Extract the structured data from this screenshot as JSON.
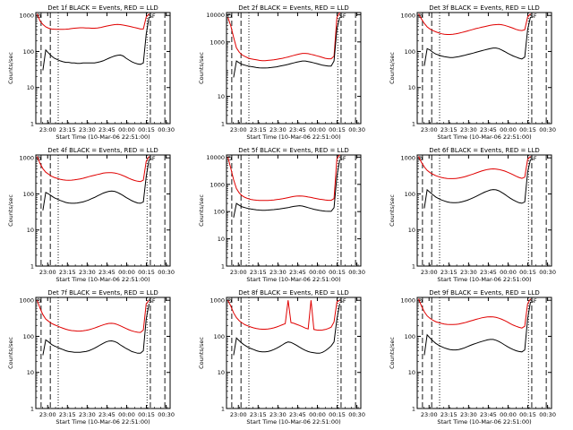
{
  "figure": {
    "background": "#ffffff",
    "axis_color": "#000000"
  },
  "chart_data": [
    {
      "type": "line",
      "title": "Det 1f BLACK = Events, RED = LLD",
      "xlabel": "Start Time (10-Mar-06 22:51:00)",
      "ylabel": "Counts/sec",
      "x_ticks": [
        "23:00",
        "23:15",
        "23:30",
        "23:45",
        "00:00",
        "00:15",
        "00:30"
      ],
      "y_ticks": [
        "1",
        "10",
        "100",
        "1000"
      ],
      "ylim": [
        1,
        1200
      ],
      "yscale": "log",
      "grid": false,
      "markers": [
        "D",
        "SF"
      ],
      "series": [
        {
          "color": "#e00000",
          "values": [
            1100,
            700,
            560,
            480,
            440,
            420,
            415,
            410,
            410,
            412,
            415,
            420,
            430,
            440,
            450,
            455,
            455,
            450,
            445,
            440,
            440,
            445,
            460,
            480,
            500,
            520,
            540,
            555,
            560,
            555,
            540,
            520,
            500,
            480,
            460,
            440,
            420,
            420,
            900,
            1100
          ]
        },
        {
          "color": "#000000",
          "values": [
            null,
            null,
            30,
            110,
            90,
            75,
            65,
            60,
            55,
            52,
            50,
            50,
            48,
            48,
            47,
            47,
            48,
            48,
            48,
            48,
            48,
            50,
            52,
            55,
            60,
            65,
            70,
            75,
            78,
            80,
            75,
            65,
            58,
            52,
            48,
            45,
            44,
            48,
            300,
            900
          ]
        }
      ]
    },
    {
      "type": "line",
      "title": "Det 2f BLACK = Events, RED = LLD",
      "xlabel": "Start Time (10-Mar-06 22:51:00)",
      "ylabel": "Counts/sec",
      "x_ticks": [
        "23:00",
        "23:15",
        "23:30",
        "23:45",
        "00:00",
        "00:15",
        "00:30"
      ],
      "y_ticks": [
        "1",
        "10",
        "1000",
        "10000"
      ],
      "ylim": [
        1,
        12000
      ],
      "yscale": "log",
      "grid": false,
      "markers": [
        "D",
        "SF"
      ],
      "series": [
        {
          "color": "#e00000",
          "values": [
            8000,
            4000,
            1500,
            600,
            420,
            330,
            290,
            260,
            240,
            230,
            220,
            210,
            205,
            205,
            210,
            215,
            220,
            230,
            240,
            250,
            265,
            280,
            300,
            320,
            340,
            360,
            380,
            380,
            370,
            350,
            330,
            310,
            290,
            270,
            250,
            240,
            240,
            300,
            8000,
            12000
          ]
        },
        {
          "color": "#000000",
          "values": [
            null,
            null,
            50,
            200,
            170,
            150,
            140,
            130,
            125,
            120,
            115,
            112,
            110,
            110,
            112,
            115,
            118,
            122,
            128,
            135,
            142,
            150,
            160,
            170,
            180,
            190,
            200,
            200,
            190,
            180,
            170,
            160,
            150,
            140,
            135,
            130,
            130,
            200,
            3000,
            8000
          ]
        }
      ]
    },
    {
      "type": "line",
      "title": "Det 3f BLACK = Events, RED = LLD",
      "xlabel": "Start Time (10-Mar-06 22:51:00)",
      "ylabel": "Counts/sec",
      "x_ticks": [
        "23:00",
        "23:15",
        "23:30",
        "23:45",
        "00:00",
        "00:15",
        "00:30"
      ],
      "y_ticks": [
        "1",
        "10",
        "100",
        "1000"
      ],
      "ylim": [
        1,
        1200
      ],
      "yscale": "log",
      "grid": false,
      "markers": [
        "D",
        "SF"
      ],
      "series": [
        {
          "color": "#e00000",
          "values": [
            1100,
            800,
            600,
            480,
            420,
            380,
            350,
            330,
            310,
            300,
            295,
            295,
            300,
            310,
            320,
            335,
            350,
            370,
            390,
            410,
            430,
            450,
            470,
            490,
            510,
            530,
            545,
            555,
            560,
            550,
            530,
            500,
            470,
            440,
            410,
            390,
            380,
            400,
            900,
            1100
          ]
        },
        {
          "color": "#000000",
          "values": [
            null,
            null,
            40,
            120,
            110,
            95,
            85,
            80,
            75,
            72,
            70,
            68,
            68,
            70,
            72,
            75,
            78,
            82,
            86,
            90,
            95,
            100,
            105,
            110,
            115,
            120,
            125,
            125,
            120,
            110,
            100,
            90,
            82,
            75,
            70,
            65,
            62,
            70,
            400,
            900
          ]
        }
      ]
    },
    {
      "type": "line",
      "title": "Det 4f BLACK = Events, RED = LLD",
      "xlabel": "Start Time (10-Mar-06 22:51:00)",
      "ylabel": "Counts/sec",
      "x_ticks": [
        "23:00",
        "23:15",
        "23:30",
        "23:45",
        "00:00",
        "00:15",
        "00:30"
      ],
      "y_ticks": [
        "1",
        "10",
        "100",
        "1000"
      ],
      "ylim": [
        1,
        1200
      ],
      "yscale": "log",
      "grid": false,
      "markers": [
        "D",
        "SF"
      ],
      "series": [
        {
          "color": "#e00000",
          "values": [
            1100,
            700,
            500,
            400,
            350,
            310,
            285,
            270,
            255,
            245,
            240,
            238,
            240,
            245,
            252,
            260,
            272,
            285,
            300,
            315,
            330,
            345,
            360,
            375,
            385,
            390,
            390,
            380,
            365,
            345,
            320,
            295,
            270,
            250,
            235,
            225,
            220,
            240,
            800,
            1100
          ]
        },
        {
          "color": "#000000",
          "values": [
            null,
            null,
            35,
            110,
            100,
            88,
            78,
            72,
            66,
            62,
            58,
            56,
            55,
            55,
            56,
            58,
            60,
            64,
            68,
            74,
            80,
            88,
            96,
            105,
            112,
            118,
            120,
            118,
            110,
            100,
            90,
            80,
            72,
            65,
            60,
            56,
            55,
            60,
            300,
            900
          ]
        }
      ]
    },
    {
      "type": "line",
      "title": "Det 5f BLACK = Events, RED = LLD",
      "xlabel": "Start Time (10-Mar-06 22:51:00)",
      "ylabel": "Counts/sec",
      "x_ticks": [
        "23:00",
        "23:15",
        "23:30",
        "23:45",
        "00:00",
        "00:15",
        "00:30"
      ],
      "y_ticks": [
        "1",
        "10",
        "100",
        "1000",
        "10000"
      ],
      "ylim": [
        1,
        12000
      ],
      "yscale": "log",
      "grid": false,
      "markers": [
        "D",
        "SF"
      ],
      "series": [
        {
          "color": "#e00000",
          "values": [
            10000,
            4000,
            1500,
            700,
            480,
            380,
            330,
            300,
            280,
            270,
            262,
            258,
            255,
            255,
            258,
            262,
            268,
            275,
            285,
            295,
            310,
            325,
            345,
            360,
            370,
            375,
            370,
            360,
            345,
            330,
            315,
            300,
            285,
            275,
            265,
            260,
            260,
            300,
            9000,
            12000
          ]
        },
        {
          "color": "#000000",
          "values": [
            null,
            null,
            60,
            200,
            170,
            150,
            140,
            130,
            125,
            120,
            116,
            114,
            112,
            112,
            114,
            116,
            118,
            122,
            126,
            130,
            135,
            140,
            148,
            155,
            160,
            165,
            160,
            150,
            140,
            130,
            122,
            116,
            110,
            106,
            104,
            102,
            102,
            140,
            2000,
            8000
          ]
        }
      ]
    },
    {
      "type": "line",
      "title": "Det 6f BLACK = Events, RED = LLD",
      "xlabel": "Start Time (10-Mar-06 22:51:00)",
      "ylabel": "Counts/sec",
      "x_ticks": [
        "23:00",
        "23:15",
        "23:30",
        "23:45",
        "00:00",
        "00:15",
        "00:30"
      ],
      "y_ticks": [
        "1",
        "10",
        "100",
        "1000"
      ],
      "ylim": [
        1,
        1200
      ],
      "yscale": "log",
      "grid": false,
      "markers": [
        "D",
        "SF"
      ],
      "series": [
        {
          "color": "#e00000",
          "values": [
            1100,
            750,
            560,
            450,
            390,
            350,
            320,
            300,
            285,
            275,
            268,
            265,
            265,
            268,
            275,
            285,
            298,
            315,
            335,
            355,
            380,
            405,
            430,
            455,
            475,
            490,
            495,
            490,
            475,
            455,
            430,
            400,
            370,
            340,
            310,
            285,
            270,
            290,
            900,
            1100
          ]
        },
        {
          "color": "#000000",
          "values": [
            null,
            null,
            40,
            130,
            110,
            95,
            82,
            74,
            68,
            64,
            60,
            58,
            57,
            57,
            58,
            60,
            63,
            67,
            72,
            78,
            85,
            93,
            102,
            112,
            120,
            128,
            132,
            130,
            122,
            110,
            98,
            86,
            76,
            68,
            62,
            57,
            55,
            60,
            400,
            900
          ]
        }
      ]
    },
    {
      "type": "line",
      "title": "Det 7f BLACK = Events, RED = LLD",
      "xlabel": "Start Time (10-Mar-06 22:51:00)",
      "ylabel": "Counts/sec",
      "x_ticks": [
        "23:00",
        "23:15",
        "23:30",
        "23:45",
        "00:00",
        "00:15",
        "00:30"
      ],
      "y_ticks": [
        "1",
        "10",
        "100",
        "1000"
      ],
      "ylim": [
        1,
        1200
      ],
      "yscale": "log",
      "grid": false,
      "markers": [
        "D",
        "SF"
      ],
      "series": [
        {
          "color": "#e00000",
          "values": [
            1000,
            600,
            400,
            300,
            260,
            230,
            210,
            195,
            180,
            168,
            158,
            150,
            145,
            142,
            140,
            140,
            142,
            146,
            152,
            160,
            170,
            182,
            195,
            208,
            220,
            228,
            230,
            225,
            212,
            196,
            180,
            165,
            152,
            142,
            135,
            130,
            128,
            150,
            800,
            1000
          ]
        },
        {
          "color": "#000000",
          "values": [
            null,
            null,
            30,
            80,
            70,
            60,
            54,
            50,
            46,
            43,
            40,
            38,
            37,
            36,
            36,
            36,
            37,
            38,
            40,
            43,
            47,
            52,
            58,
            64,
            70,
            74,
            75,
            72,
            66,
            58,
            52,
            46,
            42,
            38,
            36,
            34,
            34,
            40,
            300,
            800
          ]
        }
      ]
    },
    {
      "type": "line",
      "title": "Det 8f BLACK = Events, RED = LLD",
      "xlabel": "Start Time (10-Mar-06 22:51:00)",
      "ylabel": "Counts/sec",
      "x_ticks": [
        "23:00",
        "23:15",
        "23:30",
        "23:45",
        "00:00",
        "00:15",
        "00:30"
      ],
      "y_ticks": [
        "1",
        "10",
        "100",
        "1000"
      ],
      "ylim": [
        1,
        1200
      ],
      "yscale": "log",
      "grid": false,
      "markers": [
        "D",
        "SF"
      ],
      "series": [
        {
          "color": "#e00000",
          "values": [
            1000,
            700,
            450,
            330,
            270,
            235,
            210,
            195,
            182,
            172,
            165,
            160,
            158,
            158,
            160,
            165,
            172,
            182,
            195,
            210,
            225,
            1000,
            240,
            230,
            215,
            200,
            185,
            170,
            160,
            1000,
            155,
            150,
            148,
            150,
            155,
            165,
            180,
            250,
            900,
            1000
          ]
        },
        {
          "color": "#000000",
          "values": [
            null,
            null,
            30,
            90,
            75,
            64,
            56,
            50,
            46,
            43,
            40,
            38,
            37,
            37,
            38,
            40,
            43,
            47,
            52,
            58,
            65,
            70,
            68,
            62,
            56,
            50,
            45,
            41,
            38,
            36,
            35,
            34,
            34,
            36,
            40,
            46,
            54,
            70,
            300,
            800
          ]
        }
      ]
    },
    {
      "type": "line",
      "title": "Det 9f BLACK = Events, RED = LLD",
      "xlabel": "Start Time (10-Mar-06 22:51:00)",
      "ylabel": "Counts/sec",
      "x_ticks": [
        "23:00",
        "23:15",
        "23:30",
        "23:45",
        "00:00",
        "00:15",
        "00:30"
      ],
      "y_ticks": [
        "1",
        "10",
        "100",
        "1000"
      ],
      "ylim": [
        1,
        1200
      ],
      "yscale": "log",
      "grid": false,
      "markers": [
        "D",
        "SF"
      ],
      "series": [
        {
          "color": "#e00000",
          "values": [
            1100,
            700,
            480,
            370,
            315,
            280,
            255,
            240,
            228,
            220,
            215,
            212,
            212,
            215,
            220,
            228,
            238,
            250,
            265,
            280,
            295,
            310,
            325,
            338,
            345,
            348,
            345,
            335,
            318,
            298,
            275,
            250,
            225,
            205,
            190,
            178,
            170,
            190,
            800,
            1100
          ]
        },
        {
          "color": "#000000",
          "values": [
            null,
            null,
            30,
            110,
            90,
            75,
            64,
            57,
            52,
            48,
            45,
            43,
            42,
            42,
            43,
            45,
            48,
            52,
            56,
            60,
            64,
            68,
            72,
            76,
            80,
            82,
            82,
            78,
            72,
            65,
            58,
            52,
            47,
            43,
            40,
            38,
            37,
            42,
            300,
            900
          ]
        }
      ]
    }
  ]
}
